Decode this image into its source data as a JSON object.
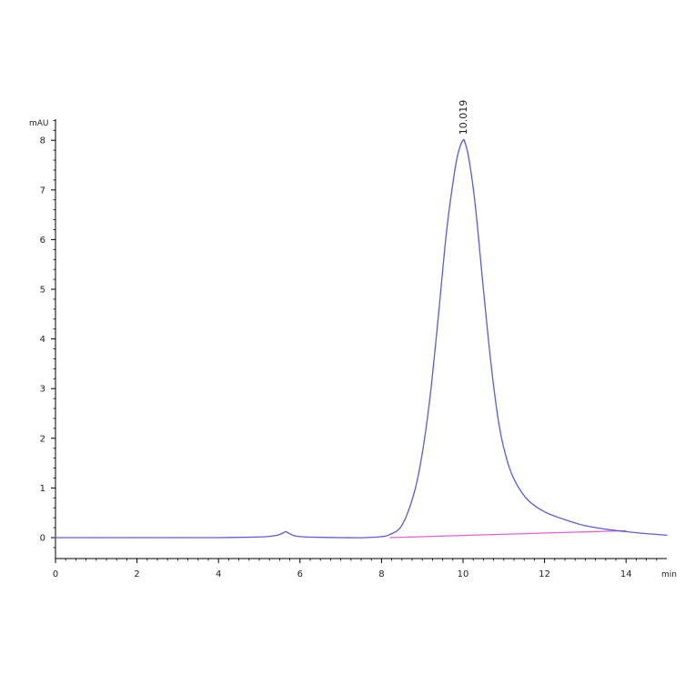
{
  "chart_data": {
    "type": "line",
    "title": "",
    "xlabel": "min",
    "ylabel": "mAU",
    "xlim": [
      0,
      15
    ],
    "ylim": [
      -0.35,
      8.5
    ],
    "x_ticks": [
      0,
      2,
      4,
      6,
      8,
      10,
      12,
      14
    ],
    "y_ticks": [
      0,
      1,
      2,
      3,
      4,
      5,
      6,
      7,
      8
    ],
    "grid": false,
    "colors": {
      "trace": "#5b5bd6",
      "baseline": "#e060d8",
      "axis": "#000000"
    },
    "series": [
      {
        "x": [
          0,
          1,
          2,
          3,
          4,
          4.8,
          5.2,
          5.45,
          5.6,
          5.65,
          5.72,
          5.85,
          6.0,
          6.3,
          7.0,
          7.6,
          8.0,
          8.2,
          8.5,
          8.8,
          9.0,
          9.2,
          9.4,
          9.6,
          9.8,
          9.9,
          10.0,
          10.05,
          10.15,
          10.3,
          10.5,
          10.7,
          10.9,
          11.1,
          11.3,
          11.6,
          12.0,
          12.5,
          13.0,
          13.5,
          14.0,
          14.5,
          15.0
        ],
        "y": [
          0.0,
          0.0,
          0.0,
          0.0,
          0.0,
          0.01,
          0.02,
          0.05,
          0.1,
          0.12,
          0.09,
          0.04,
          0.02,
          0.01,
          0.0,
          0.0,
          0.02,
          0.06,
          0.25,
          0.9,
          1.7,
          2.9,
          4.5,
          6.2,
          7.4,
          7.8,
          8.0,
          7.95,
          7.6,
          6.7,
          5.0,
          3.4,
          2.2,
          1.5,
          1.1,
          0.75,
          0.52,
          0.36,
          0.24,
          0.17,
          0.12,
          0.08,
          0.05
        ]
      }
    ],
    "baseline_segment": {
      "x": [
        8.2,
        14.0
      ],
      "y": [
        0.0,
        0.14
      ]
    },
    "annotations": [
      {
        "text": "10.019",
        "x": 10.019,
        "y": 8.0
      }
    ]
  }
}
